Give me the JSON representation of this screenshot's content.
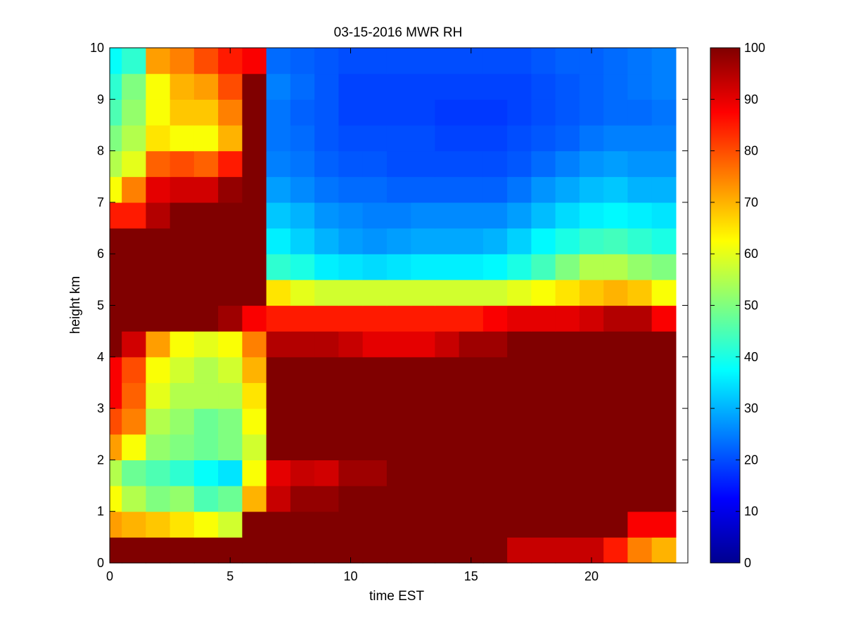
{
  "chart_data": {
    "type": "heatmap",
    "title": "03-15-2016 MWR RH",
    "xlabel": "time EST",
    "ylabel": "height km",
    "xlim": [
      0,
      24
    ],
    "ylim": [
      0,
      10
    ],
    "x_ticks": [
      0,
      5,
      10,
      15,
      20
    ],
    "y_ticks": [
      0,
      1,
      2,
      3,
      4,
      5,
      6,
      7,
      8,
      9,
      10
    ],
    "colorbar": {
      "colormap": "jet",
      "range": [
        0,
        100
      ],
      "ticks": [
        0,
        10,
        20,
        30,
        40,
        50,
        60,
        70,
        80,
        90,
        100
      ]
    },
    "time_bins": [
      0,
      1,
      2,
      3,
      4,
      5,
      6,
      7,
      8,
      9,
      10,
      11,
      12,
      13,
      14,
      15,
      16,
      17,
      18,
      19,
      20,
      21,
      22,
      23
    ],
    "height_bins": [
      0.0,
      0.5,
      1.0,
      1.5,
      2.0,
      2.5,
      3.0,
      3.5,
      4.0,
      4.5,
      5.0,
      5.5,
      6.0,
      6.5,
      7.0,
      7.5,
      8.0,
      8.5,
      9.0,
      9.5
    ],
    "rh_values": [
      [
        100,
        100,
        100,
        100,
        100,
        100,
        100,
        100,
        100,
        100,
        100,
        100,
        100,
        100,
        100,
        100,
        100,
        93,
        93,
        93,
        93,
        85,
        75,
        70
      ],
      [
        72,
        70,
        68,
        65,
        62,
        58,
        100,
        100,
        100,
        100,
        100,
        100,
        100,
        100,
        100,
        100,
        100,
        100,
        100,
        100,
        100,
        100,
        88,
        88
      ],
      [
        62,
        55,
        50,
        52,
        45,
        48,
        70,
        93,
        98,
        98,
        100,
        100,
        100,
        100,
        100,
        100,
        100,
        100,
        100,
        100,
        100,
        100,
        100,
        100
      ],
      [
        55,
        48,
        45,
        42,
        38,
        35,
        62,
        90,
        93,
        92,
        97,
        97,
        100,
        100,
        100,
        100,
        100,
        100,
        100,
        100,
        100,
        100,
        100,
        100
      ],
      [
        72,
        62,
        52,
        50,
        48,
        50,
        58,
        100,
        100,
        100,
        100,
        100,
        100,
        100,
        100,
        100,
        100,
        100,
        100,
        100,
        100,
        100,
        100,
        100
      ],
      [
        80,
        75,
        55,
        52,
        48,
        50,
        62,
        100,
        100,
        100,
        100,
        100,
        100,
        100,
        100,
        100,
        100,
        100,
        100,
        100,
        100,
        100,
        100,
        100
      ],
      [
        88,
        78,
        60,
        55,
        55,
        55,
        65,
        100,
        100,
        100,
        100,
        100,
        100,
        100,
        100,
        100,
        100,
        100,
        100,
        100,
        100,
        100,
        100,
        100
      ],
      [
        88,
        80,
        62,
        58,
        55,
        58,
        70,
        100,
        100,
        100,
        100,
        100,
        100,
        100,
        100,
        100,
        100,
        100,
        100,
        100,
        100,
        100,
        100,
        100
      ],
      [
        100,
        92,
        72,
        62,
        60,
        62,
        75,
        95,
        95,
        95,
        93,
        90,
        90,
        90,
        93,
        97,
        97,
        100,
        100,
        100,
        100,
        100,
        100,
        100
      ],
      [
        100,
        100,
        100,
        100,
        100,
        97,
        88,
        85,
        85,
        85,
        85,
        85,
        85,
        85,
        85,
        85,
        88,
        90,
        90,
        90,
        92,
        95,
        95,
        88
      ],
      [
        100,
        100,
        100,
        100,
        100,
        100,
        100,
        65,
        60,
        58,
        58,
        58,
        58,
        58,
        58,
        58,
        58,
        60,
        62,
        65,
        68,
        70,
        68,
        62
      ],
      [
        100,
        100,
        100,
        100,
        100,
        100,
        100,
        42,
        40,
        36,
        35,
        34,
        35,
        36,
        36,
        36,
        37,
        40,
        44,
        50,
        55,
        55,
        52,
        50
      ],
      [
        100,
        100,
        100,
        100,
        100,
        100,
        100,
        36,
        33,
        30,
        28,
        27,
        28,
        29,
        29,
        29,
        30,
        33,
        37,
        40,
        43,
        44,
        42,
        40
      ],
      [
        85,
        85,
        95,
        100,
        100,
        100,
        100,
        32,
        30,
        27,
        26,
        25,
        25,
        26,
        26,
        26,
        26,
        28,
        31,
        34,
        36,
        37,
        36,
        35
      ],
      [
        62,
        75,
        90,
        92,
        92,
        98,
        100,
        28,
        26,
        24,
        23,
        23,
        22,
        22,
        22,
        22,
        22,
        24,
        27,
        29,
        31,
        32,
        30,
        30
      ],
      [
        55,
        60,
        78,
        80,
        78,
        85,
        100,
        25,
        24,
        22,
        21,
        21,
        20,
        20,
        20,
        20,
        20,
        21,
        23,
        25,
        27,
        28,
        27,
        27
      ],
      [
        50,
        55,
        65,
        62,
        62,
        70,
        100,
        24,
        23,
        21,
        20,
        20,
        20,
        20,
        19,
        19,
        19,
        20,
        21,
        22,
        24,
        25,
        25,
        25
      ],
      [
        45,
        52,
        62,
        68,
        68,
        75,
        100,
        24,
        22,
        21,
        19,
        19,
        19,
        19,
        18,
        18,
        18,
        19,
        20,
        21,
        22,
        23,
        23,
        24
      ],
      [
        42,
        50,
        62,
        70,
        72,
        80,
        100,
        25,
        23,
        21,
        19,
        19,
        19,
        19,
        19,
        19,
        19,
        19,
        20,
        21,
        22,
        23,
        24,
        25
      ],
      [
        38,
        42,
        72,
        75,
        80,
        85,
        88,
        23,
        22,
        21,
        20,
        20,
        20,
        20,
        20,
        20,
        20,
        20,
        21,
        22,
        22,
        23,
        24,
        25
      ]
    ]
  }
}
